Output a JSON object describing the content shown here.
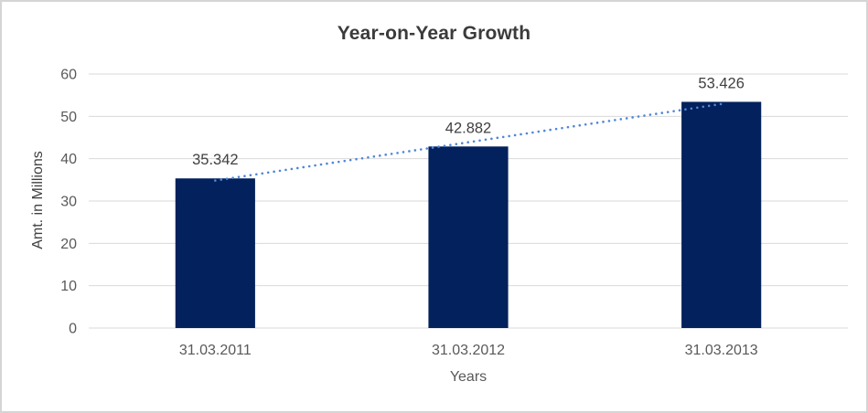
{
  "chart_data": {
    "type": "bar",
    "title": "Year-on-Year Growth",
    "xlabel": "Years",
    "ylabel": "Amt. in Millions",
    "categories": [
      "31.03.2011",
      "31.03.2012",
      "31.03.2013"
    ],
    "values": [
      35.342,
      42.882,
      53.426
    ],
    "data_labels": [
      "35.342",
      "42.882",
      "53.426"
    ],
    "ylim": [
      0,
      60
    ],
    "yticks": [
      0,
      10,
      20,
      30,
      40,
      50,
      60
    ],
    "grid": true,
    "legend": "none",
    "bar_color": "#03215c",
    "trendline": {
      "type": "linear",
      "style": "dotted",
      "color": "#4e86d8",
      "start_value": 34.841,
      "end_value": 52.925
    },
    "colors": {
      "grid": "#d9d9d9",
      "tick_label": "#595959",
      "data_label": "#404040",
      "title": "#3b3b3b",
      "axis_label": "#404040",
      "frame_border": "#d5d5d5",
      "background": "#ffffff"
    }
  }
}
